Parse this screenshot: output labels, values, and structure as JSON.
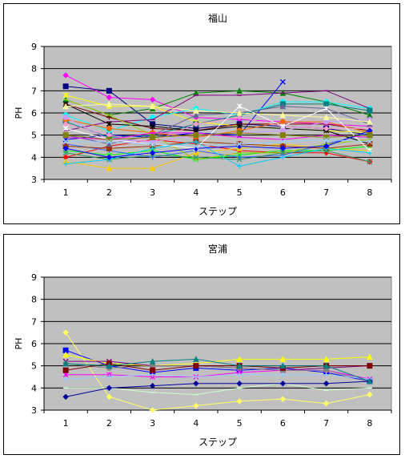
{
  "chart_data": [
    {
      "type": "line",
      "title": "福山",
      "xlabel": "ステップ",
      "ylabel": "PH",
      "x": [
        1,
        2,
        3,
        4,
        5,
        6,
        7,
        8
      ],
      "ylim": [
        3,
        9
      ],
      "yticks": [
        3,
        4,
        5,
        6,
        7,
        8,
        9
      ],
      "grid": true,
      "background": "#c0c0c0",
      "series": [
        {
          "color": "#ff00ff",
          "values": [
            7.7,
            6.7,
            6.6,
            5.8,
            5.7,
            5.6,
            5.5,
            5.4
          ]
        },
        {
          "color": "#000080",
          "values": [
            7.2,
            7.0,
            5.5,
            5.3,
            5.5,
            5.4,
            5.3,
            5.0
          ]
        },
        {
          "color": "#008000",
          "values": [
            6.6,
            5.9,
            6.2,
            6.9,
            7.0,
            6.9,
            6.5,
            5.9
          ]
        },
        {
          "color": "#0000ff",
          "values": [
            4.8,
            5.0,
            4.9,
            5.1,
            5.0,
            7.4,
            null,
            null
          ]
        },
        {
          "color": "#ffff00",
          "values": [
            6.8,
            6.3,
            6.3,
            5.6,
            5.4,
            5.3,
            5.2,
            5.1
          ]
        },
        {
          "color": "#00ffff",
          "values": [
            5.9,
            5.2,
            5.8,
            6.2,
            5.9,
            6.5,
            6.5,
            6.2
          ]
        },
        {
          "color": "#800000",
          "values": [
            6.4,
            5.8,
            5.3,
            5.2,
            5.5,
            5.5,
            5.5,
            5.2
          ]
        },
        {
          "color": "#800080",
          "values": [
            5.2,
            5.6,
            5.7,
            6.8,
            6.8,
            6.9,
            7.0,
            6.2
          ]
        },
        {
          "color": "#ff0000",
          "values": [
            4.0,
            4.5,
            4.8,
            4.6,
            4.3,
            4.2,
            4.2,
            3.8
          ]
        },
        {
          "color": "#008080",
          "values": [
            5.6,
            4.9,
            5.0,
            5.5,
            5.9,
            6.4,
            6.4,
            6.1
          ]
        },
        {
          "color": "#ffcc00",
          "values": [
            3.8,
            3.5,
            3.5,
            4.2,
            4.4,
            4.6,
            4.4,
            4.3
          ]
        },
        {
          "color": "#00ff00",
          "values": [
            4.3,
            4.1,
            4.3,
            3.9,
            4.1,
            4.3,
            4.3,
            4.5
          ]
        },
        {
          "color": "#000000",
          "values": [
            6.4,
            5.5,
            5.4,
            5.2,
            5.4,
            5.3,
            5.2,
            4.6
          ]
        },
        {
          "color": "#ff6600",
          "values": [
            5.7,
            5.3,
            5.1,
            4.9,
            5.2,
            5.6,
            5.6,
            5.1
          ]
        },
        {
          "color": "#3366ff",
          "values": [
            4.6,
            4.3,
            4.0,
            4.3,
            4.0,
            4.1,
            4.6,
            5.1
          ]
        },
        {
          "color": "#99cc00",
          "values": [
            6.6,
            5.9,
            5.0,
            3.9,
            4.2,
            4.2,
            4.6,
            4.8
          ]
        },
        {
          "color": "#ff99cc",
          "values": [
            5.5,
            5.0,
            4.7,
            5.5,
            5.8,
            5.4,
            5.3,
            5.3
          ]
        },
        {
          "color": "#993300",
          "values": [
            4.5,
            4.4,
            4.5,
            4.7,
            4.6,
            4.5,
            4.4,
            4.6
          ]
        },
        {
          "color": "#666699",
          "values": [
            5.0,
            4.6,
            5.0,
            5.9,
            6.0,
            6.3,
            6.2,
            5.5
          ]
        },
        {
          "color": "#339966",
          "values": [
            4.2,
            3.9,
            4.1,
            4.0,
            3.9,
            4.2,
            4.3,
            3.8
          ]
        },
        {
          "color": "#ffffff",
          "values": [
            5.3,
            4.8,
            4.6,
            4.4,
            6.3,
            5.4,
            6.2,
            4.3
          ]
        },
        {
          "color": "#cc99ff",
          "values": [
            5.8,
            4.8,
            4.7,
            5.0,
            5.1,
            5.2,
            5.6,
            5.7
          ]
        },
        {
          "color": "#00ccff",
          "values": [
            3.7,
            3.9,
            4.4,
            4.7,
            3.6,
            4.0,
            4.4,
            4.2
          ]
        },
        {
          "color": "#ff00ff",
          "values": [
            4.9,
            4.8,
            5.1,
            5.1,
            4.9,
            4.8,
            5.0,
            4.9
          ]
        },
        {
          "color": "#0000ff",
          "values": [
            4.4,
            4.0,
            4.2,
            4.4,
            4.5,
            4.4,
            4.5,
            5.2
          ]
        },
        {
          "color": "#808000",
          "values": [
            5.0,
            4.8,
            4.9,
            5.0,
            5.1,
            5.0,
            4.9,
            5.0
          ]
        },
        {
          "color": "#ffff99",
          "values": [
            6.3,
            6.4,
            6.3,
            6.1,
            6.0,
            5.9,
            5.8,
            5.6
          ]
        },
        {
          "color": "#99ccff",
          "values": [
            4.7,
            4.7,
            4.6,
            4.5,
            4.6,
            4.7,
            4.8,
            4.7
          ]
        }
      ]
    },
    {
      "type": "line",
      "title": "宮浦",
      "xlabel": "ステップ",
      "ylabel": "PH",
      "x": [
        1,
        2,
        3,
        4,
        5,
        6,
        7,
        8
      ],
      "ylim": [
        3,
        9
      ],
      "yticks": [
        3,
        4,
        5,
        6,
        7,
        8,
        9
      ],
      "grid": true,
      "background": "#c0c0c0",
      "series": [
        {
          "color": "#ffff66",
          "values": [
            6.5,
            3.6,
            3.0,
            3.2,
            3.4,
            3.5,
            3.3,
            3.7
          ]
        },
        {
          "color": "#0000ff",
          "values": [
            5.7,
            5.0,
            4.7,
            4.9,
            4.8,
            4.9,
            4.7,
            4.3
          ]
        },
        {
          "color": "#ffff00",
          "values": [
            5.5,
            5.1,
            5.0,
            5.1,
            5.3,
            5.3,
            5.3,
            5.4
          ]
        },
        {
          "color": "#800080",
          "values": [
            5.2,
            5.2,
            5.0,
            5.0,
            4.9,
            4.8,
            4.9,
            5.0
          ]
        },
        {
          "color": "#ff00ff",
          "values": [
            4.6,
            4.6,
            4.5,
            4.5,
            4.7,
            4.8,
            4.8,
            4.4
          ]
        },
        {
          "color": "#808080",
          "values": [
            5.1,
            4.9,
            5.0,
            5.0,
            4.9,
            4.8,
            4.8,
            4.3
          ]
        },
        {
          "color": "#99ccff",
          "values": [
            4.4,
            4.5,
            4.6,
            4.5,
            4.6,
            4.6,
            4.6,
            4.4
          ]
        },
        {
          "color": "#ccffcc",
          "values": [
            4.0,
            4.0,
            3.8,
            3.7,
            4.0,
            4.2,
            3.9,
            4.0
          ]
        },
        {
          "color": "#000099",
          "values": [
            3.6,
            4.0,
            4.1,
            4.2,
            4.2,
            4.2,
            4.2,
            4.3
          ]
        },
        {
          "color": "#800000",
          "values": [
            4.8,
            5.1,
            4.8,
            5.0,
            5.0,
            4.9,
            5.0,
            5.0
          ]
        },
        {
          "color": "#008080",
          "values": [
            5.1,
            5.0,
            5.2,
            5.3,
            5.0,
            5.0,
            5.0,
            4.3
          ]
        }
      ]
    }
  ]
}
